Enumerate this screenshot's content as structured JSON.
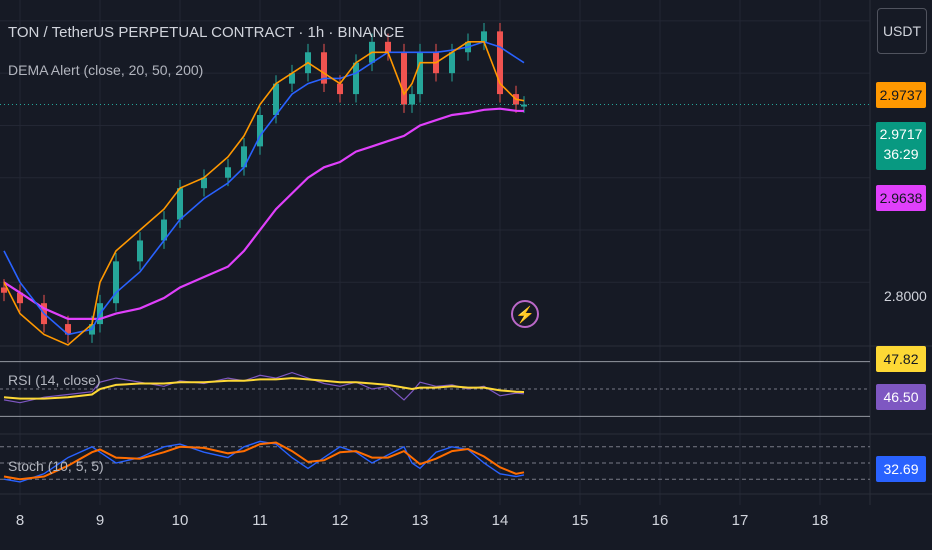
{
  "header": {
    "symbol_line": "TON / TetherUS PERPETUAL CONTRACT · 1h · BINANCE",
    "indicator_line": "DEMA Alert (close, 20, 50, 200)"
  },
  "currency_button": "USDT",
  "colors": {
    "background": "#161a25",
    "up": "#26a69a",
    "down": "#ef5350",
    "dema_fast": "#ff9800",
    "dema_mid": "#2962ff",
    "dema_slow": "#e040fb",
    "rsi": "#7e57c2",
    "rsi_ma": "#fdd835",
    "stoch_k": "#2962ff",
    "stoch_d": "#ff6d00"
  },
  "price_badges": {
    "dema_fast": "2.9737",
    "last": "2.9717",
    "countdown": "36:29",
    "dema_slow": "2.9638"
  },
  "price_axis_label": "2.8000",
  "rsi_panel": {
    "label": "RSI (14, close)",
    "ma_value": "47.82",
    "rsi_value": "46.50"
  },
  "stoch_panel": {
    "label": "Stoch (10, 5, 5)",
    "value": "32.69"
  },
  "chart_data": {
    "type": "candlestick",
    "x_ticks": [
      "8",
      "9",
      "10",
      "11",
      "12",
      "13",
      "14",
      "15",
      "16",
      "17",
      "18"
    ],
    "price_series": {
      "x": [
        7.8,
        8.0,
        8.3,
        8.6,
        8.9,
        9.0,
        9.2,
        9.5,
        9.8,
        10.0,
        10.3,
        10.6,
        10.8,
        11.0,
        11.2,
        11.4,
        11.6,
        11.8,
        12.0,
        12.2,
        12.4,
        12.6,
        12.8,
        12.9,
        13.0,
        13.2,
        13.4,
        13.6,
        13.8,
        14.0,
        14.2,
        14.3
      ],
      "close": [
        2.79,
        2.78,
        2.76,
        2.75,
        2.76,
        2.78,
        2.82,
        2.84,
        2.86,
        2.89,
        2.9,
        2.91,
        2.93,
        2.96,
        2.99,
        3.0,
        3.02,
        2.99,
        2.98,
        3.01,
        3.03,
        3.02,
        2.97,
        2.98,
        3.02,
        3.0,
        3.02,
        3.03,
        3.04,
        2.98,
        2.97,
        2.97
      ]
    },
    "dema_fast": [
      2.8,
      2.77,
      2.75,
      2.74,
      2.76,
      2.8,
      2.83,
      2.85,
      2.87,
      2.89,
      2.9,
      2.92,
      2.94,
      2.97,
      2.99,
      3.0,
      3.01,
      3.0,
      2.99,
      3.01,
      3.02,
      3.02,
      2.98,
      2.99,
      3.01,
      3.01,
      3.02,
      3.03,
      3.03,
      2.99,
      2.975,
      2.9737
    ],
    "dema_mid": [
      2.83,
      2.8,
      2.77,
      2.75,
      2.755,
      2.77,
      2.79,
      2.81,
      2.84,
      2.86,
      2.88,
      2.895,
      2.91,
      2.94,
      2.96,
      2.98,
      2.99,
      2.995,
      2.995,
      3.0,
      3.01,
      3.02,
      3.02,
      3.02,
      3.02,
      3.02,
      3.022,
      3.025,
      3.03,
      3.025,
      3.015,
      3.01
    ],
    "dema_slow": [
      2.8,
      2.79,
      2.775,
      2.765,
      2.765,
      2.765,
      2.77,
      2.775,
      2.785,
      2.795,
      2.805,
      2.815,
      2.83,
      2.85,
      2.87,
      2.885,
      2.9,
      2.91,
      2.915,
      2.925,
      2.93,
      2.935,
      2.94,
      2.945,
      2.95,
      2.955,
      2.96,
      2.962,
      2.965,
      2.966,
      2.964,
      2.9638
    ],
    "rsi": {
      "values": [
        42,
        40,
        44,
        46,
        48,
        55,
        58,
        55,
        52,
        56,
        54,
        58,
        56,
        60,
        58,
        62,
        58,
        54,
        52,
        55,
        50,
        52,
        42,
        48,
        55,
        52,
        53,
        50,
        52,
        45,
        47,
        46.5
      ],
      "ma": [
        44,
        43,
        43,
        44,
        46,
        50,
        53,
        54,
        54,
        55,
        55,
        56,
        56,
        57,
        57,
        58,
        57,
        56,
        55,
        55,
        54,
        53,
        51,
        50,
        51,
        51,
        52,
        51,
        51,
        49,
        48,
        47.82
      ],
      "levels": [
        70,
        50,
        30
      ]
    },
    "stoch": {
      "k": [
        20,
        15,
        30,
        60,
        80,
        70,
        50,
        60,
        80,
        85,
        70,
        60,
        80,
        90,
        85,
        60,
        40,
        60,
        80,
        70,
        50,
        65,
        80,
        50,
        40,
        70,
        80,
        75,
        50,
        30,
        25,
        28
      ],
      "d": [
        25,
        20,
        25,
        45,
        70,
        75,
        60,
        58,
        70,
        80,
        78,
        68,
        72,
        85,
        88,
        72,
        52,
        55,
        70,
        72,
        60,
        60,
        72,
        60,
        48,
        58,
        72,
        76,
        62,
        42,
        30,
        32.69
      ],
      "levels": [
        80,
        50,
        20
      ]
    }
  }
}
